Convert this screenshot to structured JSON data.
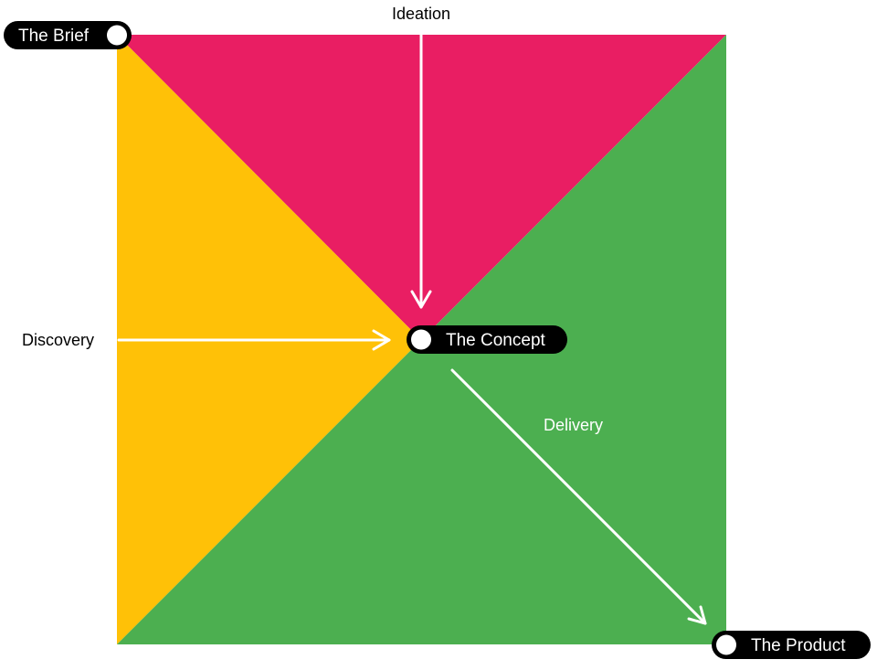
{
  "colors": {
    "ideation_region": "#E91E63",
    "discovery_region": "#FFC107",
    "delivery_region": "#4CAF50",
    "pill_background": "#000000",
    "pill_text": "#FFFFFF",
    "node_dot": "#FFFFFF",
    "arrow": "#FFFFFF",
    "outer_label": "#000000",
    "inner_label": "#FFFFFF"
  },
  "nodes": {
    "brief": {
      "label": "The Brief"
    },
    "concept": {
      "label": "The Concept"
    },
    "product": {
      "label": "The Product"
    }
  },
  "phases": {
    "ideation": {
      "label": "Ideation"
    },
    "discovery": {
      "label": "Discovery"
    },
    "delivery": {
      "label": "Delivery"
    }
  },
  "icons": {
    "node_marker": "circle-icon",
    "phase_arrow": "arrow-icon"
  }
}
